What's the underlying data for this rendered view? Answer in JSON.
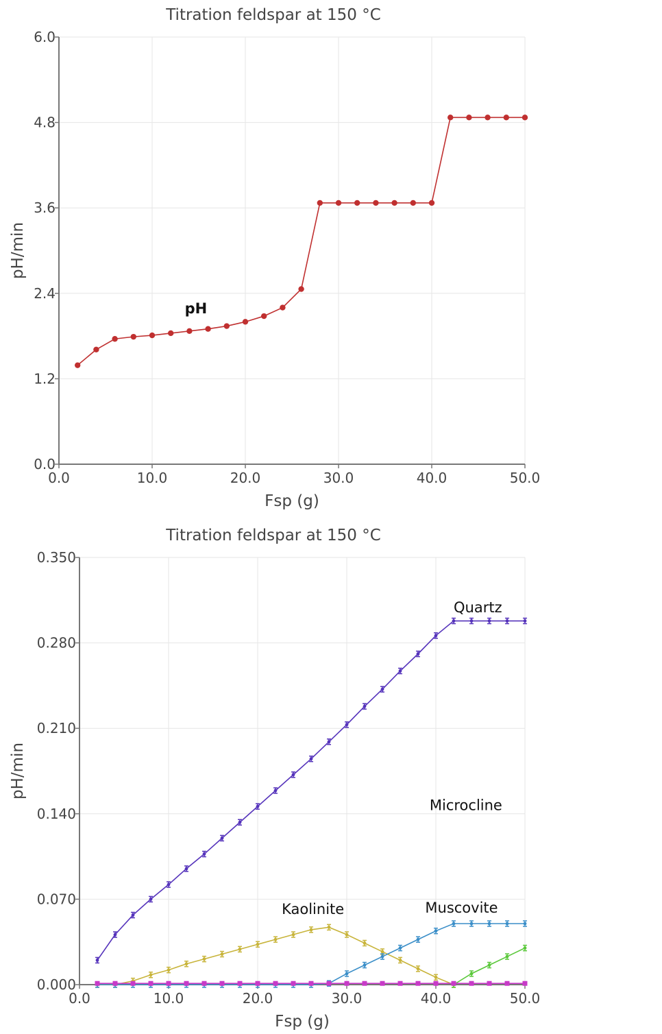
{
  "chart_data": [
    {
      "type": "line",
      "title": "Titration feldspar at 150 °C",
      "xlabel": "Fsp (g)",
      "ylabel": "pH/min",
      "xlim": [
        0,
        50
      ],
      "ylim": [
        0,
        6
      ],
      "xticks": [
        "0.0",
        "10.0",
        "20.0",
        "30.0",
        "40.0",
        "50.0"
      ],
      "yticks": [
        "0.0",
        "1.2",
        "2.4",
        "3.6",
        "4.8",
        "6.0"
      ],
      "grid": true,
      "series": [
        {
          "name": "pH",
          "color": "#c03030",
          "marker": "circle",
          "x": [
            2,
            4,
            6,
            8,
            10,
            12,
            14,
            16,
            18,
            20,
            22,
            24,
            26,
            28,
            30,
            32,
            34,
            36,
            38,
            40,
            42,
            44,
            46,
            48,
            50
          ],
          "y": [
            1.39,
            1.61,
            1.76,
            1.79,
            1.81,
            1.84,
            1.87,
            1.9,
            1.94,
            2.0,
            2.08,
            2.2,
            2.46,
            3.67,
            3.67,
            3.67,
            3.67,
            3.67,
            3.67,
            3.67,
            4.87,
            4.87,
            4.87,
            4.87,
            4.87
          ],
          "label_at": [
            13.5,
            2.12
          ]
        }
      ]
    },
    {
      "type": "line",
      "title": "Titration feldspar at 150 °C",
      "xlabel": "Fsp (g)",
      "ylabel": "pH/min",
      "xlim": [
        0,
        50
      ],
      "ylim": [
        0,
        0.35
      ],
      "xticks": [
        "0.0",
        "10.0",
        "20.0",
        "30.0",
        "40.0",
        "50.0"
      ],
      "yticks": [
        "0.000",
        "0.070",
        "0.140",
        "0.210",
        "0.280",
        "0.350"
      ],
      "grid": true,
      "series": [
        {
          "name": "Quartz",
          "color": "#5533bb",
          "marker": "errorbar",
          "x": [
            2,
            4,
            6,
            8,
            10,
            12,
            14,
            16,
            18,
            20,
            22,
            24,
            26,
            28,
            30,
            32,
            34,
            36,
            38,
            40,
            42,
            44,
            46,
            48,
            50
          ],
          "y": [
            0.02,
            0.041,
            0.057,
            0.07,
            0.082,
            0.095,
            0.107,
            0.12,
            0.133,
            0.146,
            0.159,
            0.172,
            0.185,
            0.199,
            0.213,
            0.228,
            0.242,
            0.257,
            0.271,
            0.286,
            0.298,
            0.298,
            0.298,
            0.298,
            0.298
          ],
          "label_at": [
            42.0,
            0.305
          ]
        },
        {
          "name": "Kaolinite",
          "color": "#c8b43a",
          "marker": "errorbar",
          "x": [
            2,
            4,
            6,
            8,
            10,
            12,
            14,
            16,
            18,
            20,
            22,
            24,
            26,
            28,
            30,
            32,
            34,
            36,
            38,
            40,
            42
          ],
          "y": [
            0.0,
            0.0,
            0.003,
            0.008,
            0.012,
            0.017,
            0.021,
            0.025,
            0.029,
            0.033,
            0.037,
            0.041,
            0.045,
            0.047,
            0.041,
            0.034,
            0.027,
            0.02,
            0.013,
            0.006,
            0.0
          ],
          "label_at": [
            22.7,
            0.058
          ]
        },
        {
          "name": "Muscovite",
          "color": "#3a8ec8",
          "marker": "errorbar",
          "x": [
            2,
            4,
            6,
            8,
            10,
            12,
            14,
            16,
            18,
            20,
            22,
            24,
            26,
            28,
            30,
            32,
            34,
            36,
            38,
            40,
            42,
            44,
            46,
            48,
            50
          ],
          "y": [
            0.0,
            0.0,
            0.0,
            0.0,
            0.0,
            0.0,
            0.0,
            0.0,
            0.0,
            0.0,
            0.0,
            0.0,
            0.0,
            0.001,
            0.009,
            0.016,
            0.023,
            0.03,
            0.037,
            0.044,
            0.05,
            0.05,
            0.05,
            0.05,
            0.05
          ],
          "label_at": [
            38.8,
            0.059
          ]
        },
        {
          "name": "Microcline",
          "color": "#5ac83a",
          "marker": "errorbar",
          "x": [
            42,
            44,
            46,
            48,
            50
          ],
          "y": [
            0.0,
            0.009,
            0.016,
            0.023,
            0.03
          ],
          "label_at": [
            39.3,
            0.143
          ]
        },
        {
          "name": "",
          "color": "#c83ac8",
          "marker": "square",
          "x": [
            2,
            4,
            6,
            8,
            10,
            12,
            14,
            16,
            18,
            20,
            22,
            24,
            26,
            28,
            30,
            32,
            34,
            36,
            38,
            40,
            42,
            44,
            46,
            48,
            50
          ],
          "y": [
            0.001,
            0.001,
            0.001,
            0.001,
            0.001,
            0.001,
            0.001,
            0.001,
            0.001,
            0.001,
            0.001,
            0.001,
            0.001,
            0.001,
            0.001,
            0.001,
            0.001,
            0.001,
            0.001,
            0.001,
            0.001,
            0.001,
            0.001,
            0.001,
            0.001
          ]
        }
      ]
    }
  ]
}
